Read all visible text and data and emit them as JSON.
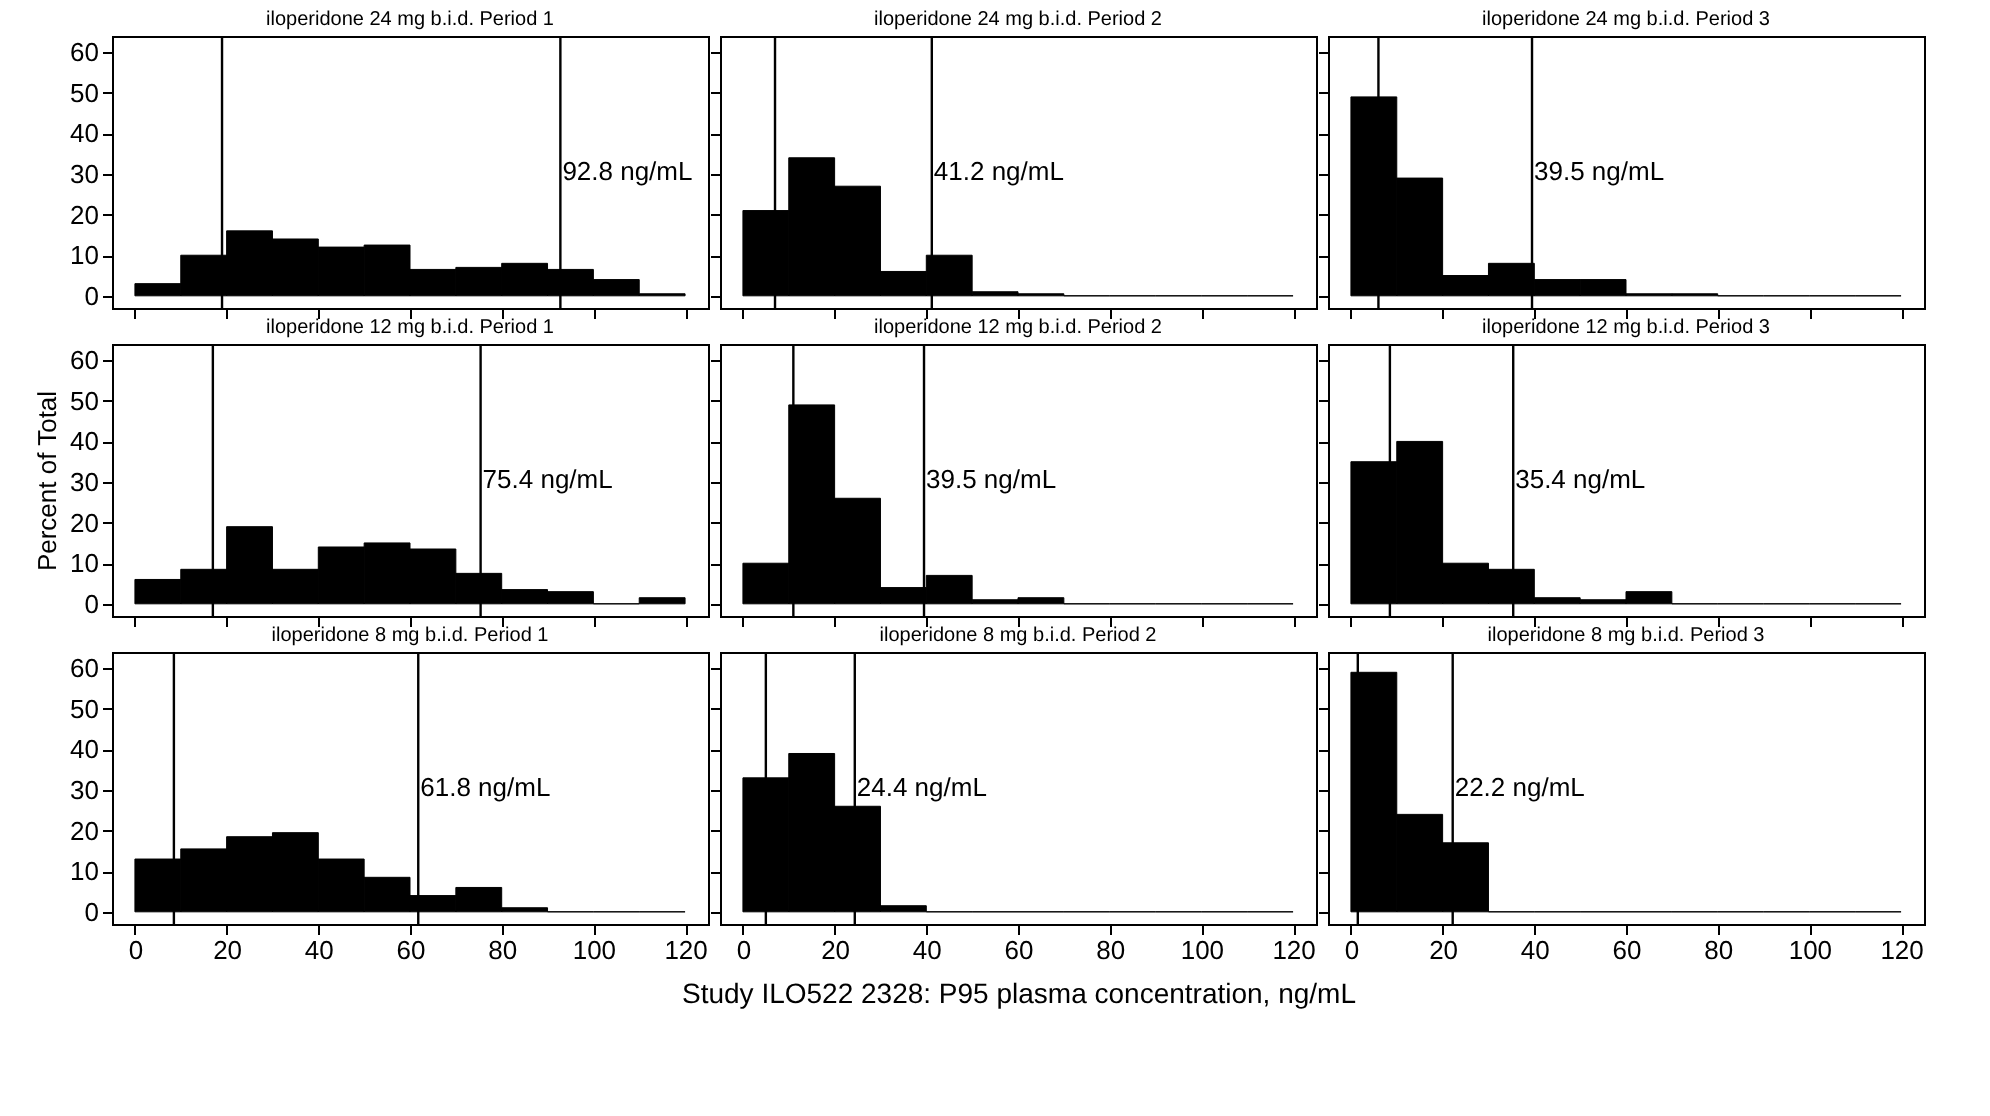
{
  "chart_data": [
    {
      "type": "histogram",
      "title": "iloperidone 24 mg b.i.d. Period 1",
      "bins": [
        0,
        10,
        20,
        30,
        40,
        50,
        60,
        70,
        80,
        90,
        100,
        110,
        120
      ],
      "values": [
        3,
        10,
        16,
        14,
        12,
        12.5,
        6.5,
        7,
        8,
        6.5,
        4,
        0.5
      ],
      "color": "#000000",
      "xlim": [
        -5,
        125
      ],
      "xticks": [
        0,
        20,
        40,
        60,
        80,
        100,
        120
      ],
      "ylim": [
        -3,
        64
      ],
      "yticks": [
        0,
        10,
        20,
        30,
        40,
        50,
        60
      ],
      "tick_labels": "y",
      "ref_lines": [
        {
          "axis": "x",
          "value": 19,
          "label": null
        },
        {
          "axis": "x",
          "value": 92.8,
          "label": "92.8 ng/mL"
        }
      ]
    },
    {
      "type": "histogram",
      "title": "iloperidone 24 mg b.i.d. Period 2",
      "bins": [
        0,
        10,
        20,
        30,
        40,
        50,
        60,
        70,
        80,
        90,
        100,
        110,
        120
      ],
      "values": [
        21,
        34,
        27,
        6,
        10,
        1,
        0.5,
        0,
        0,
        0,
        0,
        0
      ],
      "color": "#000000",
      "xlim": [
        -5,
        125
      ],
      "xticks": [
        0,
        20,
        40,
        60,
        80,
        100,
        120
      ],
      "ylim": [
        -3,
        64
      ],
      "yticks": [
        0,
        10,
        20,
        30,
        40,
        50,
        60
      ],
      "tick_labels": false,
      "ref_lines": [
        {
          "axis": "x",
          "value": 7,
          "label": null
        },
        {
          "axis": "x",
          "value": 41.2,
          "label": "41.2 ng/mL"
        }
      ]
    },
    {
      "type": "histogram",
      "title": "iloperidone 24 mg b.i.d. Period 3",
      "bins": [
        0,
        10,
        20,
        30,
        40,
        50,
        60,
        70,
        80,
        90,
        100,
        110,
        120
      ],
      "values": [
        49,
        29,
        5,
        8,
        4,
        4,
        0.5,
        0.5,
        0,
        0,
        0,
        0
      ],
      "color": "#000000",
      "xlim": [
        -5,
        125
      ],
      "xticks": [
        0,
        20,
        40,
        60,
        80,
        100,
        120
      ],
      "ylim": [
        -3,
        64
      ],
      "yticks": [
        0,
        10,
        20,
        30,
        40,
        50,
        60
      ],
      "tick_labels": false,
      "ref_lines": [
        {
          "axis": "x",
          "value": 6,
          "label": null
        },
        {
          "axis": "x",
          "value": 39.5,
          "label": "39.5 ng/mL"
        }
      ]
    },
    {
      "type": "histogram",
      "title": "iloperidone 12 mg b.i.d. Period 1",
      "ylabel": "Percent of Total",
      "bins": [
        0,
        10,
        20,
        30,
        40,
        50,
        60,
        70,
        80,
        90,
        100,
        110,
        120
      ],
      "values": [
        6,
        8.5,
        19,
        8.5,
        14,
        15,
        13.5,
        7.5,
        3.5,
        3,
        0,
        1.5
      ],
      "color": "#000000",
      "xlim": [
        -5,
        125
      ],
      "xticks": [
        0,
        20,
        40,
        60,
        80,
        100,
        120
      ],
      "ylim": [
        -3,
        64
      ],
      "yticks": [
        0,
        10,
        20,
        30,
        40,
        50,
        60
      ],
      "tick_labels": "y",
      "ref_lines": [
        {
          "axis": "x",
          "value": 17,
          "label": null
        },
        {
          "axis": "x",
          "value": 75.4,
          "label": "75.4 ng/mL"
        }
      ]
    },
    {
      "type": "histogram",
      "title": "iloperidone 12 mg b.i.d. Period 2",
      "bins": [
        0,
        10,
        20,
        30,
        40,
        50,
        60,
        70,
        80,
        90,
        100,
        110,
        120
      ],
      "values": [
        10,
        49,
        26,
        4,
        7,
        1,
        1.5,
        0,
        0,
        0,
        0,
        0
      ],
      "color": "#000000",
      "xlim": [
        -5,
        125
      ],
      "xticks": [
        0,
        20,
        40,
        60,
        80,
        100,
        120
      ],
      "ylim": [
        -3,
        64
      ],
      "yticks": [
        0,
        10,
        20,
        30,
        40,
        50,
        60
      ],
      "tick_labels": false,
      "ref_lines": [
        {
          "axis": "x",
          "value": 11,
          "label": null
        },
        {
          "axis": "x",
          "value": 39.5,
          "label": "39.5 ng/mL"
        }
      ]
    },
    {
      "type": "histogram",
      "title": "iloperidone 12 mg b.i.d. Period 3",
      "bins": [
        0,
        10,
        20,
        30,
        40,
        50,
        60,
        70,
        80,
        90,
        100,
        110,
        120
      ],
      "values": [
        35,
        40,
        10,
        8.5,
        1.5,
        1,
        3,
        0,
        0,
        0,
        0,
        0
      ],
      "color": "#000000",
      "xlim": [
        -5,
        125
      ],
      "xticks": [
        0,
        20,
        40,
        60,
        80,
        100,
        120
      ],
      "ylim": [
        -3,
        64
      ],
      "yticks": [
        0,
        10,
        20,
        30,
        40,
        50,
        60
      ],
      "tick_labels": false,
      "ref_lines": [
        {
          "axis": "x",
          "value": 8.5,
          "label": null
        },
        {
          "axis": "x",
          "value": 35.4,
          "label": "35.4 ng/mL"
        }
      ]
    },
    {
      "type": "histogram",
      "title": "iloperidone 8 mg b.i.d. Period 1",
      "bins": [
        0,
        10,
        20,
        30,
        40,
        50,
        60,
        70,
        80,
        90,
        100,
        110,
        120
      ],
      "values": [
        13,
        15.5,
        18.5,
        19.5,
        13,
        8.5,
        4,
        6,
        1,
        0,
        0,
        0
      ],
      "color": "#000000",
      "xlim": [
        -5,
        125
      ],
      "xticks": [
        0,
        20,
        40,
        60,
        80,
        100,
        120
      ],
      "ylim": [
        -3,
        64
      ],
      "yticks": [
        0,
        10,
        20,
        30,
        40,
        50,
        60
      ],
      "ref_lines": [
        {
          "axis": "x",
          "value": 8.5,
          "label": null
        },
        {
          "axis": "x",
          "value": 61.8,
          "label": "61.8 ng/mL"
        }
      ]
    },
    {
      "type": "histogram",
      "title": "iloperidone 8 mg b.i.d. Period 2",
      "xlabel": "Study ILO522 2328: P95 plasma concentration, ng/mL",
      "bins": [
        0,
        10,
        20,
        30,
        40,
        50,
        60,
        70,
        80,
        90,
        100,
        110,
        120
      ],
      "values": [
        33,
        39,
        26,
        1.5,
        0,
        0,
        0,
        0,
        0,
        0,
        0,
        0
      ],
      "color": "#000000",
      "xlim": [
        -5,
        125
      ],
      "xticks": [
        0,
        20,
        40,
        60,
        80,
        100,
        120
      ],
      "ylim": [
        -3,
        64
      ],
      "yticks": [
        0,
        10,
        20,
        30,
        40,
        50,
        60
      ],
      "tick_labels": "x",
      "ref_lines": [
        {
          "axis": "x",
          "value": 5,
          "label": null
        },
        {
          "axis": "x",
          "value": 24.4,
          "label": "24.4 ng/mL"
        }
      ]
    },
    {
      "type": "histogram",
      "title": "iloperidone 8 mg b.i.d. Period 3",
      "bins": [
        0,
        10,
        20,
        30,
        40,
        50,
        60,
        70,
        80,
        90,
        100,
        110,
        120
      ],
      "values": [
        59,
        24,
        17,
        0,
        0,
        0,
        0,
        0,
        0,
        0,
        0,
        0
      ],
      "color": "#000000",
      "xlim": [
        -5,
        125
      ],
      "xticks": [
        0,
        20,
        40,
        60,
        80,
        100,
        120
      ],
      "ylim": [
        -3,
        64
      ],
      "yticks": [
        0,
        10,
        20,
        30,
        40,
        50,
        60
      ],
      "tick_labels": "x",
      "ref_lines": [
        {
          "axis": "x",
          "value": 1.5,
          "label": null
        },
        {
          "axis": "x",
          "value": 22.2,
          "label": "22.2 ng/mL"
        }
      ]
    }
  ]
}
